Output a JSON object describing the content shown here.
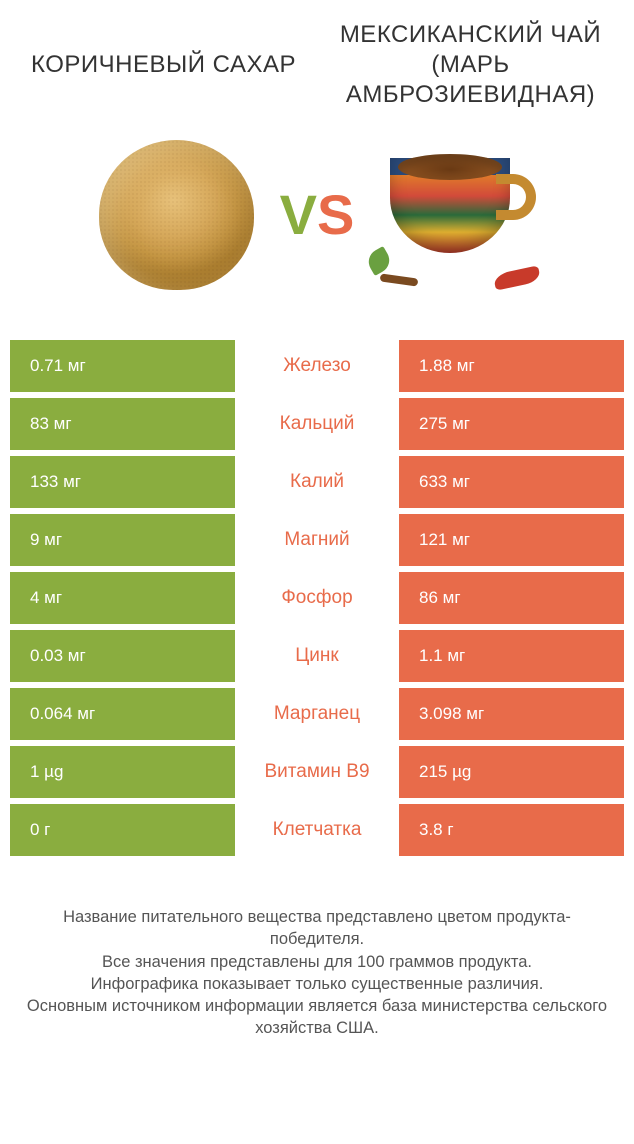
{
  "colors": {
    "left": "#8aad3f",
    "right": "#e86b4a",
    "text": "#333333",
    "footer": "#555555",
    "white": "#ffffff"
  },
  "products": {
    "left_title": "Коричневый сахар",
    "right_title": "Мексиканский чай (марь амброзиевидная)"
  },
  "vs": {
    "v": "V",
    "s": "S"
  },
  "rows": [
    {
      "label": "Железо",
      "left": "0.71 мг",
      "right": "1.88 мг",
      "winner": "right"
    },
    {
      "label": "Кальций",
      "left": "83 мг",
      "right": "275 мг",
      "winner": "right"
    },
    {
      "label": "Калий",
      "left": "133 мг",
      "right": "633 мг",
      "winner": "right"
    },
    {
      "label": "Магний",
      "left": "9 мг",
      "right": "121 мг",
      "winner": "right"
    },
    {
      "label": "Фосфор",
      "left": "4 мг",
      "right": "86 мг",
      "winner": "right"
    },
    {
      "label": "Цинк",
      "left": "0.03 мг",
      "right": "1.1 мг",
      "winner": "right"
    },
    {
      "label": "Марганец",
      "left": "0.064 мг",
      "right": "3.098 мг",
      "winner": "right"
    },
    {
      "label": "Витамин B9",
      "left": "1 µg",
      "right": "215 µg",
      "winner": "right"
    },
    {
      "label": "Клетчатка",
      "left": "0 г",
      "right": "3.8 г",
      "winner": "right"
    }
  ],
  "footer": {
    "l1": "Название питательного вещества представлено цветом продукта-победителя.",
    "l2": "Все значения представлены для 100 граммов продукта.",
    "l3": "Инфографика показывает только существенные различия.",
    "l4": "Основным источником информации является база министерства сельского хозяйства США."
  }
}
